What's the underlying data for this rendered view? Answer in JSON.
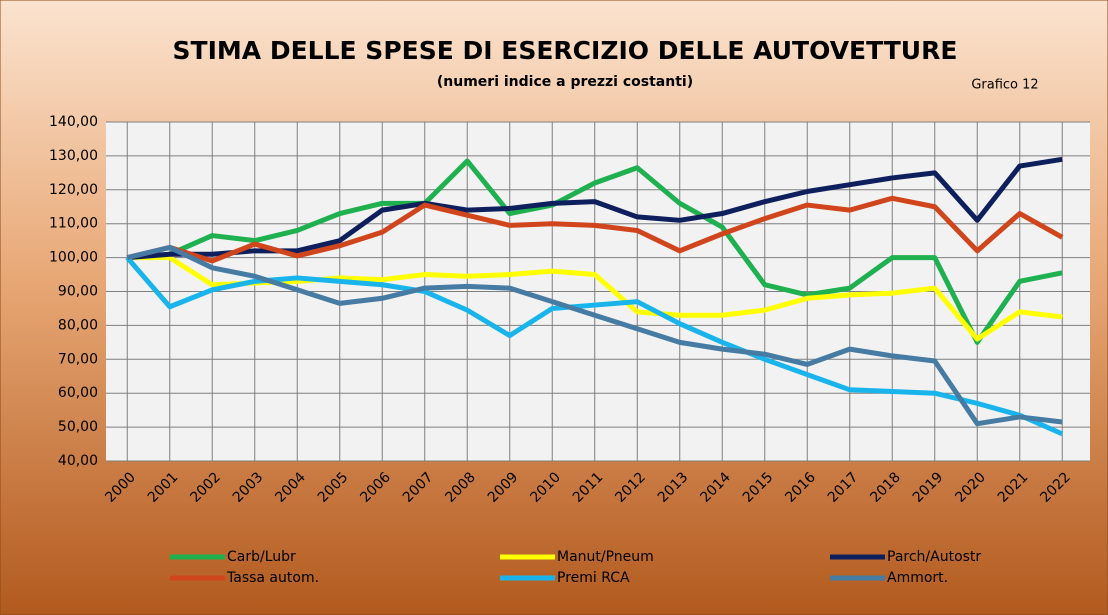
{
  "chart_data": {
    "type": "line",
    "title": "STIMA DELLE SPESE DI ESERCIZIO DELLE AUTOVETTURE",
    "subtitle": "(numeri indice a prezzi costanti)",
    "annotation": "Grafico 12",
    "categories": [
      "2000",
      "2001",
      "2002",
      "2003",
      "2004",
      "2005",
      "2006",
      "2007",
      "2008",
      "2009",
      "2010",
      "2011",
      "2012",
      "2013",
      "2014",
      "2015",
      "2016",
      "2017",
      "2018",
      "2019",
      "2020",
      "2021",
      "2022"
    ],
    "series": [
      {
        "name": "Carb/Lubr",
        "color": "#1fb050",
        "values": [
          100,
          101,
          106.5,
          105,
          108,
          113,
          116,
          116,
          128.5,
          113,
          115.5,
          122,
          126.5,
          116,
          109,
          92,
          89,
          91,
          100,
          100,
          75,
          93,
          95.5
        ]
      },
      {
        "name": "Manut/Pneum",
        "color": "#ffff00",
        "values": [
          100,
          100,
          92,
          92.5,
          93,
          94,
          93.5,
          95,
          94.5,
          95,
          96,
          95,
          84,
          83,
          83,
          84.5,
          88,
          89,
          89.5,
          91,
          76,
          84,
          82.5
        ]
      },
      {
        "name": "Parch/Autostr",
        "color": "#0d1f5c",
        "values": [
          100,
          101,
          101,
          102,
          102,
          105,
          114,
          116,
          114,
          114.5,
          116,
          116.5,
          112,
          111,
          113,
          116.5,
          119.5,
          121.5,
          123.5,
          125,
          111,
          127,
          129
        ]
      },
      {
        "name": "Tassa autom.",
        "color": "#d0451b",
        "values": [
          100,
          103,
          99,
          104,
          100.5,
          103.5,
          107.5,
          115.5,
          112.5,
          109.5,
          110,
          109.5,
          108,
          102,
          107,
          111.5,
          115.5,
          114,
          117.5,
          115,
          102,
          113,
          106
        ]
      },
      {
        "name": "Premi RCA",
        "color": "#1ab4ec",
        "values": [
          100,
          85.5,
          90.5,
          93,
          94,
          93,
          92,
          90,
          84.5,
          77,
          85,
          86,
          87,
          80.5,
          75,
          70,
          65.5,
          61,
          60.5,
          60,
          57,
          53.5,
          48
        ]
      },
      {
        "name": "Ammort.",
        "color": "#467ba4",
        "values": [
          100,
          103,
          97,
          94.5,
          90.5,
          86.5,
          88,
          91,
          91.5,
          91,
          87,
          83,
          79,
          75,
          73,
          71.5,
          68.5,
          73,
          71,
          69.5,
          51,
          53,
          51.5
        ]
      }
    ],
    "ylim": [
      40,
      140
    ],
    "yticks": [
      {
        "value": 40,
        "label": "40,00"
      },
      {
        "value": 50,
        "label": "50,00"
      },
      {
        "value": 60,
        "label": "60,00"
      },
      {
        "value": 70,
        "label": "70,00"
      },
      {
        "value": 80,
        "label": "80,00"
      },
      {
        "value": 90,
        "label": "90,00"
      },
      {
        "value": 100,
        "label": "100,00"
      },
      {
        "value": 110,
        "label": "110,00"
      },
      {
        "value": 120,
        "label": "120,00"
      },
      {
        "value": 130,
        "label": "130,00"
      },
      {
        "value": 140,
        "label": "140,00"
      }
    ],
    "grid": true
  }
}
